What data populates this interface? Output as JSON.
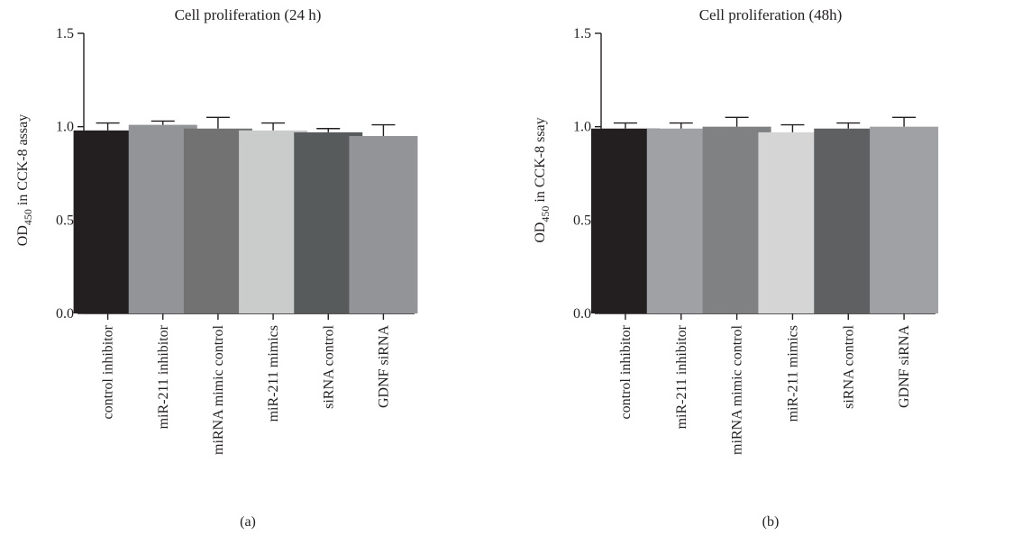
{
  "chart_data": [
    {
      "type": "bar",
      "title": "Cell proliferation (24 h)",
      "ylabel_main": "OD",
      "ylabel_sub": "450",
      "ylabel_rest": " in CCK-8 assay",
      "panel_label": "(a)",
      "ylim": [
        0,
        1.5
      ],
      "yticks": [
        "0.0",
        "0.5",
        "1.0",
        "1.5"
      ],
      "categories": [
        "control inhibitor",
        "miR-211 inhibitor",
        "miRNA mimic control",
        "miR-211 mimics",
        "siRNA control",
        "GDNF siRNA"
      ],
      "values": [
        0.98,
        1.01,
        0.99,
        0.98,
        0.97,
        0.95
      ],
      "errors": [
        0.04,
        0.02,
        0.06,
        0.04,
        0.02,
        0.06
      ],
      "colors": [
        "#231f20",
        "#929497",
        "#727272",
        "#cacccb",
        "#575b5c",
        "#929497"
      ]
    },
    {
      "type": "bar",
      "title": "Cell proliferation (48h)",
      "ylabel_main": "OD",
      "ylabel_sub": "450",
      "ylabel_rest": " in CCK-8 ssay",
      "panel_label": "(b)",
      "ylim": [
        0,
        1.5
      ],
      "yticks": [
        "0.0",
        "0.5",
        "1.0",
        "1.5"
      ],
      "categories": [
        "control inhibitor",
        "miR-211 inhibitor",
        "miRNA mimic control",
        "miR-211 mimics",
        "siRNA control",
        "GDNF siRNA"
      ],
      "values": [
        0.99,
        0.99,
        1.0,
        0.97,
        0.99,
        1.0
      ],
      "errors": [
        0.03,
        0.03,
        0.05,
        0.04,
        0.03,
        0.05
      ],
      "colors": [
        "#231f20",
        "#a0a1a4",
        "#808182",
        "#d5d5d5",
        "#5f6061",
        "#a0a1a4"
      ]
    }
  ]
}
